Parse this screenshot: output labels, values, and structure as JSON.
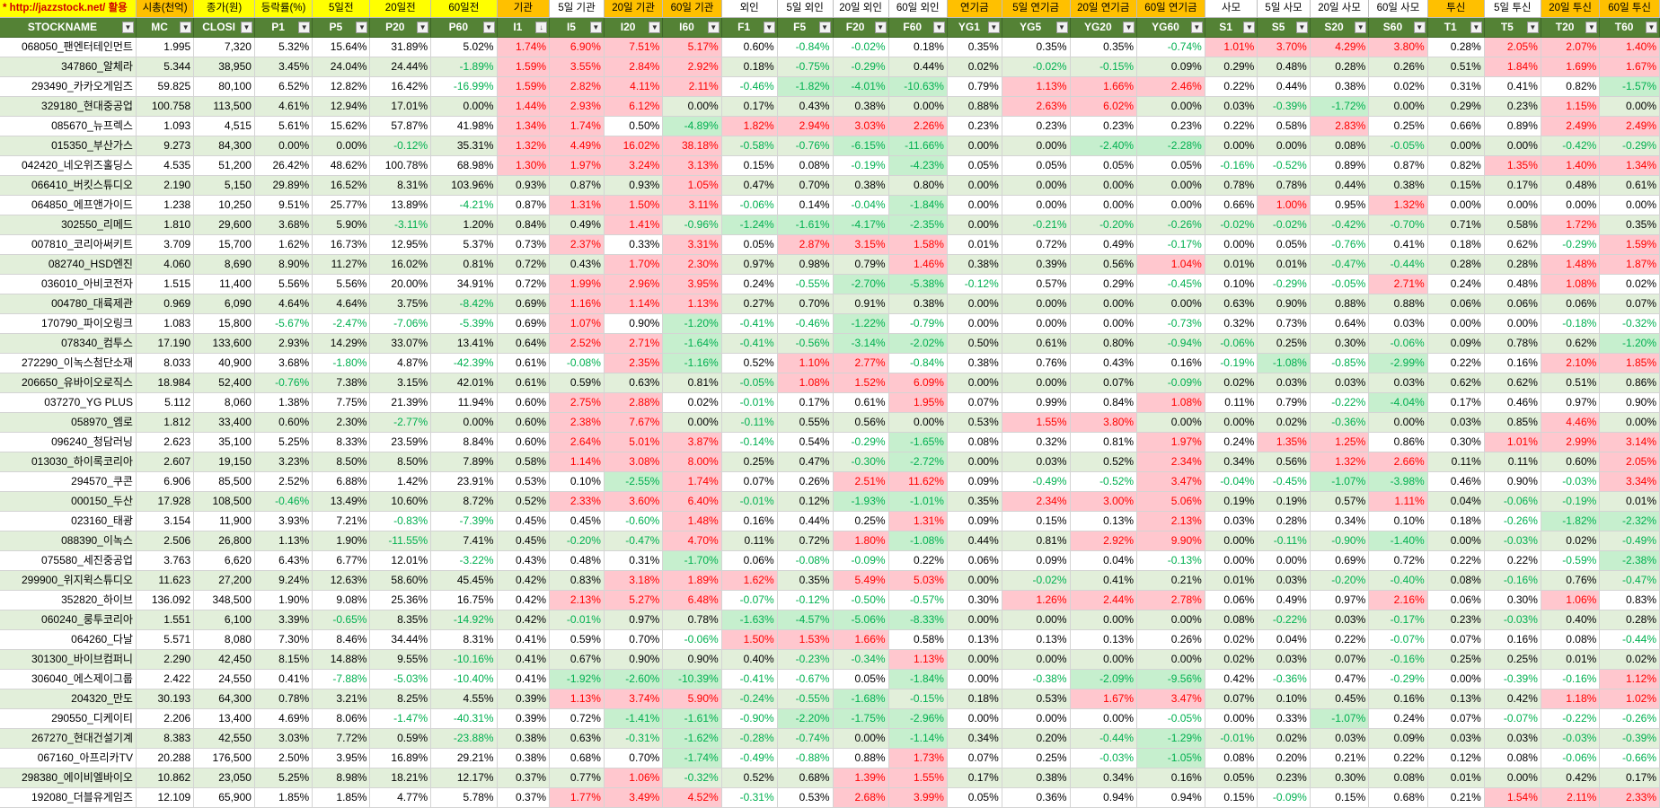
{
  "group_headers": [
    "* http://jazzstock.net/ 활용",
    "시총(천억)",
    "종가(원)",
    "등락률(%)",
    "5일전",
    "20일전",
    "60일전",
    "기관",
    "5일 기관",
    "20일 기관",
    "60일 기관",
    "외인",
    "5일 외인",
    "20일 외인",
    "60일 외인",
    "연기금",
    "5일 연기금",
    "20일 연기금",
    "60일 연기금",
    "사모",
    "5일 사모",
    "20일 사모",
    "60일 사모",
    "투신",
    "5일 투신",
    "20일 투신",
    "60일 투신"
  ],
  "column_headers": [
    "STOCKNAME",
    "MC",
    "CLOSE",
    "P1",
    "P5",
    "P20",
    "P60",
    "I1",
    "I5",
    "I20",
    "I60",
    "F1",
    "F5",
    "F20",
    "F60",
    "YG1",
    "YG5",
    "YG20",
    "YG60",
    "S1",
    "S5",
    "S20",
    "S60",
    "T1",
    "T5",
    "T20",
    "T60"
  ],
  "column_headers_display": [
    "STOCKNAME",
    "MC",
    "CLOSI",
    "P1",
    "P5",
    "P20",
    "P60",
    "I1",
    "I5",
    "I20",
    "I60",
    "F1",
    "F5",
    "F20",
    "F60",
    "YG1",
    "YG5",
    "YG20",
    "YG60",
    "S1",
    "S5",
    "S20",
    "S60",
    "T1",
    "T5",
    "T20",
    "T60"
  ],
  "sorted_column": "I1",
  "colors": {
    "header_green": "#548235",
    "row_alt": "#e2efda",
    "positive_fill": "#ffc7ce",
    "negative_fill": "#c6efce",
    "link_red": "#d00000",
    "yellow": "#ffff00",
    "orange": "#ffc000"
  },
  "rows": [
    [
      "068050_팬엔터테인먼트",
      "1.995",
      "7,320",
      "5.32%",
      "15.64%",
      "31.89%",
      "5.02%",
      "1.74%",
      "6.90%",
      "7.51%",
      "5.17%",
      "0.60%",
      "-0.84%",
      "-0.02%",
      "0.18%",
      "0.35%",
      "0.35%",
      "0.35%",
      "-0.74%",
      "1.01%",
      "3.70%",
      "4.29%",
      "3.80%",
      "0.28%",
      "2.05%",
      "2.07%",
      "1.40%"
    ],
    [
      "347860_알체라",
      "5.344",
      "38,950",
      "3.45%",
      "24.04%",
      "24.44%",
      "-1.89%",
      "1.59%",
      "3.55%",
      "2.84%",
      "2.92%",
      "0.18%",
      "-0.75%",
      "-0.29%",
      "0.44%",
      "0.02%",
      "-0.02%",
      "-0.15%",
      "0.09%",
      "0.29%",
      "0.48%",
      "0.28%",
      "0.26%",
      "0.51%",
      "1.84%",
      "1.69%",
      "1.67%"
    ],
    [
      "293490_카카오게임즈",
      "59.825",
      "80,100",
      "6.52%",
      "12.82%",
      "16.42%",
      "-16.99%",
      "1.59%",
      "2.82%",
      "4.11%",
      "2.11%",
      "-0.46%",
      "-1.82%",
      "-4.01%",
      "-10.63%",
      "0.79%",
      "1.13%",
      "1.66%",
      "2.46%",
      "0.22%",
      "0.44%",
      "0.38%",
      "0.02%",
      "0.31%",
      "0.41%",
      "0.82%",
      "-1.57%"
    ],
    [
      "329180_현대중공업",
      "100.758",
      "113,500",
      "4.61%",
      "12.94%",
      "17.01%",
      "0.00%",
      "1.44%",
      "2.93%",
      "6.12%",
      "0.00%",
      "0.17%",
      "0.43%",
      "0.38%",
      "0.00%",
      "0.88%",
      "2.63%",
      "6.02%",
      "0.00%",
      "0.03%",
      "-0.39%",
      "-1.72%",
      "0.00%",
      "0.29%",
      "0.23%",
      "1.15%",
      "0.00%"
    ],
    [
      "085670_뉴프렉스",
      "1.093",
      "4,515",
      "5.61%",
      "15.62%",
      "57.87%",
      "41.98%",
      "1.34%",
      "1.74%",
      "0.50%",
      "-4.89%",
      "1.82%",
      "2.94%",
      "3.03%",
      "2.26%",
      "0.23%",
      "0.23%",
      "0.23%",
      "0.23%",
      "0.22%",
      "0.58%",
      "2.83%",
      "0.25%",
      "0.66%",
      "0.89%",
      "2.49%",
      "2.49%"
    ],
    [
      "015350_부산가스",
      "9.273",
      "84,300",
      "0.00%",
      "0.00%",
      "-0.12%",
      "35.31%",
      "1.32%",
      "4.49%",
      "16.02%",
      "38.18%",
      "-0.58%",
      "-0.76%",
      "-6.15%",
      "-11.66%",
      "0.00%",
      "0.00%",
      "-2.40%",
      "-2.28%",
      "0.00%",
      "0.00%",
      "0.08%",
      "-0.05%",
      "0.00%",
      "0.00%",
      "-0.42%",
      "-0.29%"
    ],
    [
      "042420_네오위즈홀딩스",
      "4.535",
      "51,200",
      "26.42%",
      "48.62%",
      "100.78%",
      "68.98%",
      "1.30%",
      "1.97%",
      "3.24%",
      "3.13%",
      "0.15%",
      "0.08%",
      "-0.19%",
      "-4.23%",
      "0.05%",
      "0.05%",
      "0.05%",
      "0.05%",
      "-0.16%",
      "-0.52%",
      "0.89%",
      "0.87%",
      "0.82%",
      "1.35%",
      "1.40%",
      "1.34%"
    ],
    [
      "066410_버킷스튜디오",
      "2.190",
      "5,150",
      "29.89%",
      "16.52%",
      "8.31%",
      "103.96%",
      "0.93%",
      "0.87%",
      "0.93%",
      "1.05%",
      "0.47%",
      "0.70%",
      "0.38%",
      "0.80%",
      "0.00%",
      "0.00%",
      "0.00%",
      "0.00%",
      "0.78%",
      "0.78%",
      "0.44%",
      "0.38%",
      "0.15%",
      "0.17%",
      "0.48%",
      "0.61%"
    ],
    [
      "064850_에프앤가이드",
      "1.238",
      "10,250",
      "9.51%",
      "25.77%",
      "13.89%",
      "-4.21%",
      "0.87%",
      "1.31%",
      "1.50%",
      "3.11%",
      "-0.06%",
      "0.14%",
      "-0.04%",
      "-1.84%",
      "0.00%",
      "0.00%",
      "0.00%",
      "0.00%",
      "0.66%",
      "1.00%",
      "0.95%",
      "1.32%",
      "0.00%",
      "0.00%",
      "0.00%",
      "0.00%"
    ],
    [
      "302550_리메드",
      "1.810",
      "29,600",
      "3.68%",
      "5.90%",
      "-3.11%",
      "1.20%",
      "0.84%",
      "0.49%",
      "1.41%",
      "-0.96%",
      "-1.24%",
      "-1.61%",
      "-4.17%",
      "-2.35%",
      "0.00%",
      "-0.21%",
      "-0.20%",
      "-0.26%",
      "-0.02%",
      "-0.02%",
      "-0.42%",
      "-0.70%",
      "0.71%",
      "0.58%",
      "1.72%",
      "0.35%"
    ],
    [
      "007810_코리아써키트",
      "3.709",
      "15,700",
      "1.62%",
      "16.73%",
      "12.95%",
      "5.37%",
      "0.73%",
      "2.37%",
      "0.33%",
      "3.31%",
      "0.05%",
      "2.87%",
      "3.15%",
      "1.58%",
      "0.01%",
      "0.72%",
      "0.49%",
      "-0.17%",
      "0.00%",
      "0.05%",
      "-0.76%",
      "0.41%",
      "0.18%",
      "0.62%",
      "-0.29%",
      "1.59%"
    ],
    [
      "082740_HSD엔진",
      "4.060",
      "8,690",
      "8.90%",
      "11.27%",
      "16.02%",
      "0.81%",
      "0.72%",
      "0.43%",
      "1.70%",
      "2.30%",
      "0.97%",
      "0.98%",
      "0.79%",
      "1.46%",
      "0.38%",
      "0.39%",
      "0.56%",
      "1.04%",
      "0.01%",
      "0.01%",
      "-0.47%",
      "-0.44%",
      "0.28%",
      "0.28%",
      "1.48%",
      "1.87%"
    ],
    [
      "036010_아비코전자",
      "1.515",
      "11,400",
      "5.56%",
      "5.56%",
      "20.00%",
      "34.91%",
      "0.72%",
      "1.99%",
      "2.96%",
      "3.95%",
      "0.24%",
      "-0.55%",
      "-2.70%",
      "-5.38%",
      "-0.12%",
      "0.57%",
      "0.29%",
      "-0.45%",
      "0.10%",
      "-0.29%",
      "-0.05%",
      "2.71%",
      "0.24%",
      "0.48%",
      "1.08%",
      "0.02%"
    ],
    [
      "004780_대륙제관",
      "0.969",
      "6,090",
      "4.64%",
      "4.64%",
      "3.75%",
      "-8.42%",
      "0.69%",
      "1.16%",
      "1.14%",
      "1.13%",
      "0.27%",
      "0.70%",
      "0.91%",
      "0.38%",
      "0.00%",
      "0.00%",
      "0.00%",
      "0.00%",
      "0.63%",
      "0.90%",
      "0.88%",
      "0.88%",
      "0.06%",
      "0.06%",
      "0.06%",
      "0.07%"
    ],
    [
      "170790_파이오링크",
      "1.083",
      "15,800",
      "-5.67%",
      "-2.47%",
      "-7.06%",
      "-5.39%",
      "0.69%",
      "1.07%",
      "0.90%",
      "-1.20%",
      "-0.41%",
      "-0.46%",
      "-1.22%",
      "-0.79%",
      "0.00%",
      "0.00%",
      "0.00%",
      "-0.73%",
      "0.32%",
      "0.73%",
      "0.64%",
      "0.03%",
      "0.00%",
      "0.00%",
      "-0.18%",
      "-0.32%"
    ],
    [
      "078340_컴투스",
      "17.190",
      "133,600",
      "2.93%",
      "14.29%",
      "33.07%",
      "13.41%",
      "0.64%",
      "2.52%",
      "2.71%",
      "-1.64%",
      "-0.41%",
      "-0.56%",
      "-3.14%",
      "-2.02%",
      "0.50%",
      "0.61%",
      "0.80%",
      "-0.94%",
      "-0.06%",
      "0.25%",
      "0.30%",
      "-0.06%",
      "0.09%",
      "0.78%",
      "0.62%",
      "-1.20%"
    ],
    [
      "272290_이녹스첨단소재",
      "8.033",
      "40,900",
      "3.68%",
      "-1.80%",
      "4.87%",
      "-42.39%",
      "0.61%",
      "-0.08%",
      "2.35%",
      "-1.16%",
      "0.52%",
      "1.10%",
      "2.77%",
      "-0.84%",
      "0.38%",
      "0.76%",
      "0.43%",
      "0.16%",
      "-0.19%",
      "-1.08%",
      "-0.85%",
      "-2.99%",
      "0.22%",
      "0.16%",
      "2.10%",
      "1.85%"
    ],
    [
      "206650_유바이오로직스",
      "18.984",
      "52,400",
      "-0.76%",
      "7.38%",
      "3.15%",
      "42.01%",
      "0.61%",
      "0.59%",
      "0.63%",
      "0.81%",
      "-0.05%",
      "1.08%",
      "1.52%",
      "6.09%",
      "0.00%",
      "0.00%",
      "0.07%",
      "-0.09%",
      "0.02%",
      "0.03%",
      "0.03%",
      "0.03%",
      "0.62%",
      "0.62%",
      "0.51%",
      "0.86%"
    ],
    [
      "037270_YG PLUS",
      "5.112",
      "8,060",
      "1.38%",
      "7.75%",
      "21.39%",
      "11.94%",
      "0.60%",
      "2.75%",
      "2.88%",
      "0.02%",
      "-0.01%",
      "0.17%",
      "0.61%",
      "1.95%",
      "0.07%",
      "0.99%",
      "0.84%",
      "1.08%",
      "0.11%",
      "0.79%",
      "-0.22%",
      "-4.04%",
      "0.17%",
      "0.46%",
      "0.97%",
      "0.90%"
    ],
    [
      "058970_엠로",
      "1.812",
      "33,400",
      "0.60%",
      "2.30%",
      "-2.77%",
      "0.00%",
      "0.60%",
      "2.38%",
      "7.67%",
      "0.00%",
      "-0.11%",
      "0.55%",
      "0.56%",
      "0.00%",
      "0.53%",
      "1.55%",
      "3.80%",
      "0.00%",
      "0.00%",
      "0.02%",
      "-0.36%",
      "0.00%",
      "0.03%",
      "0.85%",
      "4.46%",
      "0.00%"
    ],
    [
      "096240_청담러닝",
      "2.623",
      "35,100",
      "5.25%",
      "8.33%",
      "23.59%",
      "8.84%",
      "0.60%",
      "2.64%",
      "5.01%",
      "3.87%",
      "-0.14%",
      "0.54%",
      "-0.29%",
      "-1.65%",
      "0.08%",
      "0.32%",
      "0.81%",
      "1.97%",
      "0.24%",
      "1.35%",
      "1.25%",
      "0.86%",
      "0.30%",
      "1.01%",
      "2.99%",
      "3.14%"
    ],
    [
      "013030_하이록코리아",
      "2.607",
      "19,150",
      "3.23%",
      "8.50%",
      "8.50%",
      "7.89%",
      "0.58%",
      "1.14%",
      "3.08%",
      "8.00%",
      "0.25%",
      "0.47%",
      "-0.30%",
      "-2.72%",
      "0.00%",
      "0.03%",
      "0.52%",
      "2.34%",
      "0.34%",
      "0.56%",
      "1.32%",
      "2.66%",
      "0.11%",
      "0.11%",
      "0.60%",
      "2.05%"
    ],
    [
      "294570_쿠콘",
      "6.906",
      "85,500",
      "2.52%",
      "6.88%",
      "1.42%",
      "23.91%",
      "0.53%",
      "0.10%",
      "-2.55%",
      "1.74%",
      "0.07%",
      "0.26%",
      "2.51%",
      "11.62%",
      "0.09%",
      "-0.49%",
      "-0.52%",
      "3.47%",
      "-0.04%",
      "-0.45%",
      "-1.07%",
      "-3.98%",
      "0.46%",
      "0.90%",
      "-0.03%",
      "3.34%"
    ],
    [
      "000150_두산",
      "17.928",
      "108,500",
      "-0.46%",
      "13.49%",
      "10.60%",
      "8.72%",
      "0.52%",
      "2.33%",
      "3.60%",
      "6.40%",
      "-0.01%",
      "0.12%",
      "-1.93%",
      "-1.01%",
      "0.35%",
      "2.34%",
      "3.00%",
      "5.06%",
      "0.19%",
      "0.19%",
      "0.57%",
      "1.11%",
      "0.04%",
      "-0.06%",
      "-0.19%",
      "0.01%"
    ],
    [
      "023160_태광",
      "3.154",
      "11,900",
      "3.93%",
      "7.21%",
      "-0.83%",
      "-7.39%",
      "0.45%",
      "0.45%",
      "-0.60%",
      "1.48%",
      "0.16%",
      "0.44%",
      "0.25%",
      "1.31%",
      "0.09%",
      "0.15%",
      "0.13%",
      "2.13%",
      "0.03%",
      "0.28%",
      "0.34%",
      "0.10%",
      "0.18%",
      "-0.26%",
      "-1.82%",
      "-2.32%"
    ],
    [
      "088390_이녹스",
      "2.506",
      "26,800",
      "1.13%",
      "1.90%",
      "-11.55%",
      "7.41%",
      "0.45%",
      "-0.20%",
      "-0.47%",
      "4.70%",
      "0.11%",
      "0.72%",
      "1.80%",
      "-1.08%",
      "0.44%",
      "0.81%",
      "2.92%",
      "9.90%",
      "0.00%",
      "-0.11%",
      "-0.90%",
      "-1.40%",
      "0.00%",
      "-0.03%",
      "0.02%",
      "-0.49%"
    ],
    [
      "075580_세진중공업",
      "3.763",
      "6,620",
      "6.43%",
      "6.77%",
      "12.01%",
      "-3.22%",
      "0.43%",
      "0.48%",
      "0.31%",
      "-1.70%",
      "0.06%",
      "-0.08%",
      "-0.09%",
      "0.22%",
      "0.06%",
      "0.09%",
      "0.04%",
      "-0.13%",
      "0.00%",
      "0.00%",
      "0.69%",
      "0.72%",
      "0.22%",
      "0.22%",
      "-0.59%",
      "-2.38%"
    ],
    [
      "299900_위지윅스튜디오",
      "11.623",
      "27,200",
      "9.24%",
      "12.63%",
      "58.60%",
      "45.45%",
      "0.42%",
      "0.83%",
      "3.18%",
      "1.89%",
      "1.62%",
      "0.35%",
      "5.49%",
      "5.03%",
      "0.00%",
      "-0.02%",
      "0.41%",
      "0.21%",
      "0.01%",
      "0.03%",
      "-0.20%",
      "-0.40%",
      "0.08%",
      "-0.16%",
      "0.76%",
      "-0.47%"
    ],
    [
      "352820_하이브",
      "136.092",
      "348,500",
      "1.90%",
      "9.08%",
      "25.36%",
      "16.75%",
      "0.42%",
      "2.13%",
      "5.27%",
      "6.48%",
      "-0.07%",
      "-0.12%",
      "-0.50%",
      "-0.57%",
      "0.30%",
      "1.26%",
      "2.44%",
      "2.78%",
      "0.06%",
      "0.49%",
      "0.97%",
      "2.16%",
      "0.06%",
      "0.30%",
      "1.06%",
      "0.83%"
    ],
    [
      "060240_룽투코리아",
      "1.551",
      "6,100",
      "3.39%",
      "-0.65%",
      "8.35%",
      "-14.92%",
      "0.42%",
      "-0.01%",
      "0.97%",
      "0.78%",
      "-1.63%",
      "-4.57%",
      "-5.06%",
      "-8.33%",
      "0.00%",
      "0.00%",
      "0.00%",
      "0.00%",
      "0.08%",
      "-0.22%",
      "0.03%",
      "-0.17%",
      "0.23%",
      "-0.03%",
      "0.40%",
      "0.28%"
    ],
    [
      "064260_다날",
      "5.571",
      "8,080",
      "7.30%",
      "8.46%",
      "34.44%",
      "8.31%",
      "0.41%",
      "0.59%",
      "0.70%",
      "-0.06%",
      "1.50%",
      "1.53%",
      "1.66%",
      "0.58%",
      "0.13%",
      "0.13%",
      "0.13%",
      "0.26%",
      "0.02%",
      "0.04%",
      "0.22%",
      "-0.07%",
      "0.07%",
      "0.16%",
      "0.08%",
      "-0.44%"
    ],
    [
      "301300_바이브컴퍼니",
      "2.290",
      "42,450",
      "8.15%",
      "14.88%",
      "9.55%",
      "-10.16%",
      "0.41%",
      "0.67%",
      "0.90%",
      "0.90%",
      "0.40%",
      "-0.23%",
      "-0.34%",
      "1.13%",
      "0.00%",
      "0.00%",
      "0.00%",
      "0.00%",
      "0.02%",
      "0.03%",
      "0.07%",
      "-0.16%",
      "0.25%",
      "0.25%",
      "0.01%",
      "0.02%"
    ],
    [
      "306040_에스제이그룹",
      "2.422",
      "24,550",
      "0.41%",
      "-7.88%",
      "-5.03%",
      "-10.40%",
      "0.41%",
      "-1.92%",
      "-2.60%",
      "-10.39%",
      "-0.41%",
      "-0.67%",
      "0.05%",
      "-1.84%",
      "0.00%",
      "-0.38%",
      "-2.09%",
      "-9.56%",
      "0.42%",
      "-0.36%",
      "0.47%",
      "-0.29%",
      "0.00%",
      "-0.39%",
      "-0.16%",
      "1.12%"
    ],
    [
      "204320_만도",
      "30.193",
      "64,300",
      "0.78%",
      "3.21%",
      "8.25%",
      "4.55%",
      "0.39%",
      "1.13%",
      "3.74%",
      "5.90%",
      "-0.24%",
      "-0.55%",
      "-1.68%",
      "-0.15%",
      "0.18%",
      "0.53%",
      "1.67%",
      "3.47%",
      "0.07%",
      "0.10%",
      "0.45%",
      "0.16%",
      "0.13%",
      "0.42%",
      "1.18%",
      "1.02%"
    ],
    [
      "290550_디케이티",
      "2.206",
      "13,400",
      "4.69%",
      "8.06%",
      "-1.47%",
      "-40.31%",
      "0.39%",
      "0.72%",
      "-1.41%",
      "-1.61%",
      "-0.90%",
      "-2.20%",
      "-1.75%",
      "-2.96%",
      "0.00%",
      "0.00%",
      "0.00%",
      "-0.05%",
      "0.00%",
      "0.33%",
      "-1.07%",
      "0.24%",
      "0.07%",
      "-0.07%",
      "-0.22%",
      "-0.26%"
    ],
    [
      "267270_현대건설기계",
      "8.383",
      "42,550",
      "3.03%",
      "7.72%",
      "0.59%",
      "-23.88%",
      "0.38%",
      "0.63%",
      "-0.31%",
      "-1.62%",
      "-0.28%",
      "-0.74%",
      "0.00%",
      "-1.14%",
      "0.34%",
      "0.20%",
      "-0.44%",
      "-1.29%",
      "-0.01%",
      "0.02%",
      "0.03%",
      "0.09%",
      "0.03%",
      "0.03%",
      "-0.03%",
      "-0.39%"
    ],
    [
      "067160_아프리카TV",
      "20.288",
      "176,500",
      "2.50%",
      "3.95%",
      "16.89%",
      "29.21%",
      "0.38%",
      "0.68%",
      "0.70%",
      "-1.74%",
      "-0.49%",
      "-0.88%",
      "0.88%",
      "1.73%",
      "0.07%",
      "0.25%",
      "-0.03%",
      "-1.05%",
      "0.08%",
      "0.20%",
      "0.21%",
      "0.22%",
      "0.12%",
      "0.08%",
      "-0.06%",
      "-0.66%"
    ],
    [
      "298380_에이비엘바이오",
      "10.862",
      "23,050",
      "5.25%",
      "8.98%",
      "18.21%",
      "12.17%",
      "0.37%",
      "0.77%",
      "1.06%",
      "-0.32%",
      "0.52%",
      "0.68%",
      "1.39%",
      "1.55%",
      "0.17%",
      "0.38%",
      "0.34%",
      "0.16%",
      "0.05%",
      "0.23%",
      "0.30%",
      "0.08%",
      "0.01%",
      "0.00%",
      "0.42%",
      "0.17%"
    ],
    [
      "192080_더블유게임즈",
      "12.109",
      "65,900",
      "1.85%",
      "1.85%",
      "4.77%",
      "5.78%",
      "0.37%",
      "1.77%",
      "3.49%",
      "4.52%",
      "-0.31%",
      "0.53%",
      "2.68%",
      "3.99%",
      "0.05%",
      "0.36%",
      "0.94%",
      "0.94%",
      "0.15%",
      "-0.09%",
      "0.15%",
      "0.68%",
      "0.21%",
      "1.54%",
      "2.11%",
      "2.33%"
    ]
  ]
}
